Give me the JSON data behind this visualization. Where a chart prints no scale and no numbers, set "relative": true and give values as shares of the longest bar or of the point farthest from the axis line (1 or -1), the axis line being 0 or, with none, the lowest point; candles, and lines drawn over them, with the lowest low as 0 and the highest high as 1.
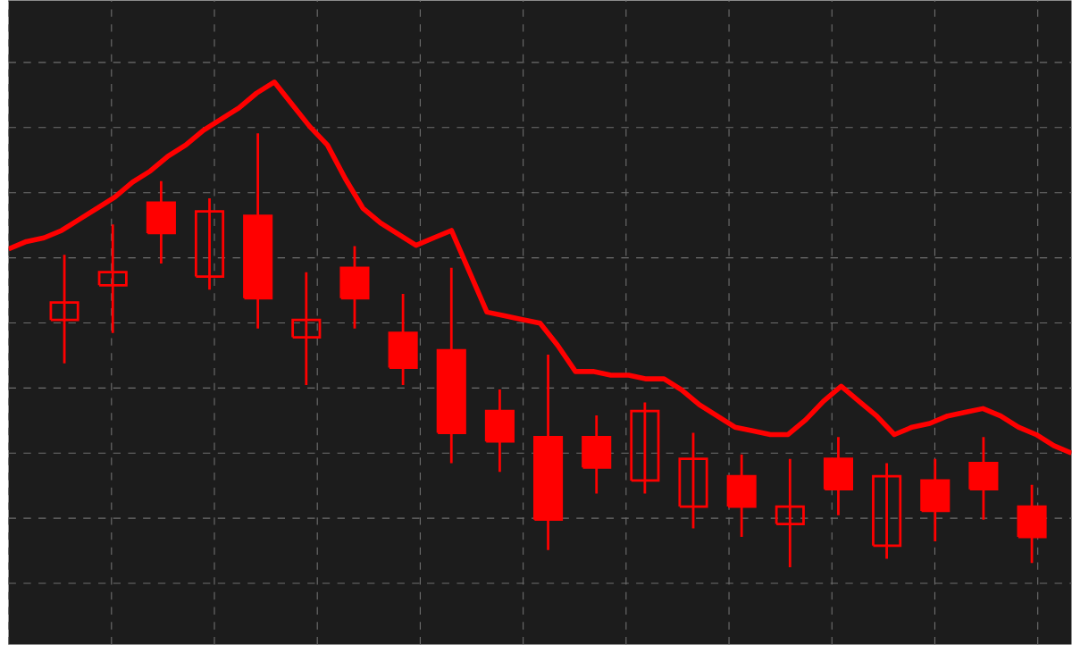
{
  "chart_data": [
    {
      "type": "candlestick",
      "relative": true,
      "color": "#ff0000",
      "categories": [
        null,
        null,
        null,
        null,
        null,
        null,
        null,
        null,
        null,
        null,
        null,
        null,
        null,
        null,
        null,
        null,
        null,
        null,
        null,
        null,
        null
      ],
      "ohlc": [
        [
          0.57,
          0.72,
          0.47,
          0.61
        ],
        [
          0.65,
          0.79,
          0.54,
          0.68
        ],
        [
          0.84,
          0.89,
          0.7,
          0.77
        ],
        [
          0.67,
          0.85,
          0.64,
          0.82
        ],
        [
          0.81,
          1,
          0.55,
          0.62
        ],
        [
          0.53,
          0.68,
          0.42,
          0.57
        ],
        [
          0.69,
          0.74,
          0.55,
          0.62
        ],
        [
          0.54,
          0.63,
          0.42,
          0.46
        ],
        [
          0.5,
          0.69,
          0.24,
          0.31
        ],
        [
          0.36,
          0.41,
          0.22,
          0.29
        ],
        [
          0.3,
          0.49,
          0.04,
          0.11
        ],
        [
          0.3,
          0.35,
          0.17,
          0.23
        ],
        [
          0.2,
          0.38,
          0.17,
          0.36
        ],
        [
          0.14,
          0.31,
          0.09,
          0.25
        ],
        [
          0.21,
          0.26,
          0.07,
          0.14
        ],
        [
          0.1,
          0.25,
          0,
          0.14
        ],
        [
          0.25,
          0.3,
          0.12,
          0.18
        ],
        [
          0.05,
          0.24,
          0.02,
          0.21
        ],
        [
          0.2,
          0.25,
          0.06,
          0.13
        ],
        [
          0.24,
          0.3,
          0.11,
          0.18
        ],
        [
          0.14,
          0.19,
          0.01,
          0.07
        ]
      ]
    },
    {
      "type": "line",
      "relative": true,
      "grid": true,
      "color": "#ff0000",
      "categories": [
        null,
        null,
        null,
        null,
        null,
        null,
        null,
        null,
        null,
        null,
        null,
        null,
        null,
        null,
        null,
        null,
        null,
        null,
        null,
        null,
        null,
        null,
        null,
        null,
        null,
        null,
        null,
        null,
        null,
        null,
        null,
        null,
        null,
        null,
        null,
        null,
        null,
        null,
        null,
        null,
        null,
        null,
        null,
        null,
        null,
        null,
        null,
        null,
        null,
        null,
        null,
        null,
        null,
        null,
        null,
        null,
        null,
        null,
        null,
        null,
        null
      ],
      "values": [
        0.55,
        0.57,
        0.58,
        0.6,
        0.63,
        0.66,
        0.69,
        0.73,
        0.76,
        0.8,
        0.83,
        0.87,
        0.9,
        0.93,
        0.97,
        1,
        0.94,
        0.88,
        0.83,
        0.74,
        0.66,
        0.62,
        0.59,
        0.56,
        0.58,
        0.6,
        0.49,
        0.38,
        0.37,
        0.36,
        0.35,
        0.29,
        0.22,
        0.22,
        0.21,
        0.21,
        0.2,
        0.2,
        0.17,
        0.13,
        0.1,
        0.07,
        0.06,
        0.05,
        0.05,
        0.09,
        0.14,
        0.18,
        0.14,
        0.1,
        0.05,
        0.07,
        0.08,
        0.1,
        0.11,
        0.12,
        0.1,
        0.07,
        0.05,
        0.02,
        0
      ]
    }
  ]
}
